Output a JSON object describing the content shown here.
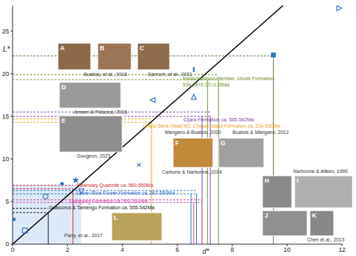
{
  "chart_data": {
    "type": "scatter",
    "x_label": "d*",
    "y_label": "L*",
    "xlim": [
      0,
      12
    ],
    "ylim": [
      0,
      28
    ],
    "xticks": [
      0,
      2,
      4,
      6,
      8,
      10,
      12
    ],
    "yticks": [
      0,
      5,
      10,
      15,
      20,
      25
    ],
    "color": "#2e6fc4",
    "points": [
      {
        "x": 11.9,
        "y": 27.7,
        "marker": "triangle-right"
      },
      {
        "x": 9.5,
        "y": 22.2,
        "marker": "square"
      },
      {
        "x": 6.6,
        "y": 20.5,
        "marker": "rect"
      },
      {
        "x": 6.6,
        "y": 17.3,
        "marker": "triangle-up"
      },
      {
        "x": 5.1,
        "y": 16.9,
        "marker": "triangle-left"
      },
      {
        "x": 4.6,
        "y": 9.3,
        "marker": "x"
      },
      {
        "x": 2.3,
        "y": 7.5,
        "marker": "star"
      },
      {
        "x": 2.5,
        "y": 6.2,
        "marker": "triangle-down"
      },
      {
        "x": 1.8,
        "y": 7.1,
        "marker": "dot"
      },
      {
        "x": 1.2,
        "y": 5.6,
        "marker": "circle"
      },
      {
        "x": 0.45,
        "y": 1.6,
        "marker": "square-open"
      },
      {
        "x": 0.05,
        "y": 2.9,
        "marker": "dot"
      }
    ],
    "diagonal": {
      "x": [
        0,
        9.85
      ],
      "y": [
        0,
        28
      ],
      "color": "#000000"
    },
    "shaded_region": {
      "x": [
        0,
        2.5
      ],
      "y": [
        0,
        7
      ]
    },
    "guides": [
      {
        "color": "#556b2f",
        "L": [
          22.1
        ],
        "d": [
          9.5
        ]
      },
      {
        "label": [
          "Feldschuhhorn Member, Urusis Formation",
          "539.18+0.17/-0.26Ma"
        ],
        "color": "#6b8e23",
        "L": [
          19.3,
          19.9
        ],
        "d": [
          7.1,
          7.5
        ]
      },
      {
        "label": [
          "Cijara Formation ca. 545-542Ma"
        ],
        "color": "#7b3fa0",
        "L": [
          15.0,
          15.5
        ],
        "d": [
          6.9,
          7.2
        ]
      },
      {
        "label": [
          "Grand Bank Head M2, Chapel Island Formation ca. 534-530Ma"
        ],
        "color": "#e8a317",
        "L": [
          14.3,
          14.7
        ],
        "d": [
          5.06
        ]
      },
      {
        "label": [
          "Rawnsley Quartzite ca. 560-550Ma"
        ],
        "color": "#d62728",
        "L": [
          6.5,
          6.9
        ],
        "d": [
          2.2
        ]
      },
      {
        "label": [
          "Lower Blue Flower Formation ca. 567-550Ma"
        ],
        "color": "#1f6fc4",
        "L": [
          5.9,
          6.3
        ],
        "d": [
          6.5,
          6.7
        ]
      },
      {
        "label": [
          "Dengying Formation ca. 551-543Ma"
        ],
        "color": "#d63aa8",
        "L": [
          4.9,
          5.2
        ],
        "d": [
          6.6,
          6.9
        ]
      },
      {
        "label": [
          "Guaicurus & Tamengo Formation ca. 555-542Ma"
        ],
        "color": "#111111",
        "L": [
          3.7,
          4.2
        ],
        "d": [
          1.3
        ]
      }
    ],
    "panels": [
      "A",
      "B",
      "C",
      "D",
      "E",
      "F",
      "G",
      "H",
      "I",
      "J",
      "K",
      "L"
    ],
    "citations": [
      "Buatois, et al., 2018",
      "Darroch, et al., 2021",
      "Jensen & Palacios, 2016",
      "Gougeon, 2023",
      "Mángano & Buatois, 2020",
      "Buatois & Mángano, 2012",
      "Carbone & Narbonne, 2014",
      "Narbonne & Aitken, 1990",
      "Chen et al., 2013",
      "Parry, et al., 2017"
    ]
  }
}
